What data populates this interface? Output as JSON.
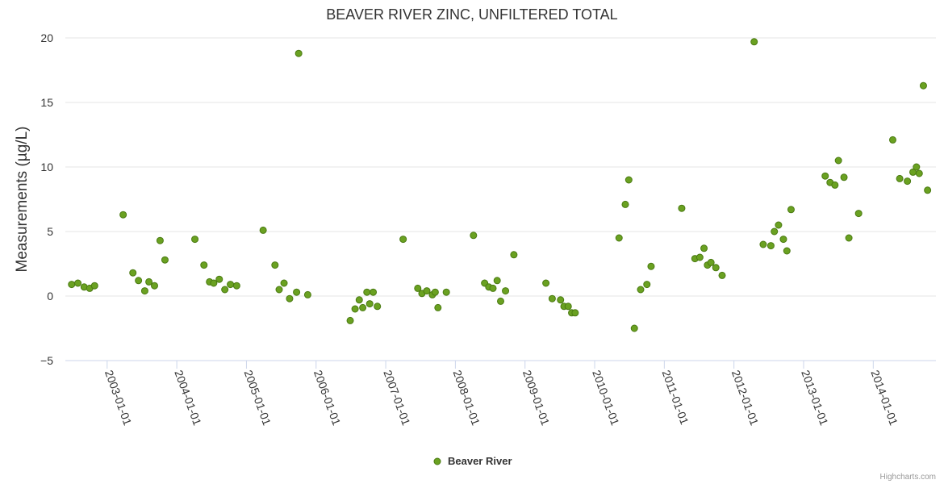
{
  "chart_data": {
    "type": "scatter",
    "title": "BEAVER RIVER ZINC, UNFILTERED TOTAL",
    "xlabel": "",
    "ylabel": "Measurements (µg/L)",
    "ylim": [
      -5,
      20
    ],
    "yticks": [
      -5,
      0,
      5,
      10,
      15,
      20
    ],
    "xrange": [
      2002.4,
      2014.9
    ],
    "xticks": [
      {
        "value": 2003,
        "label": "2003-01-01"
      },
      {
        "value": 2004,
        "label": "2004-01-01"
      },
      {
        "value": 2005,
        "label": "2005-01-01"
      },
      {
        "value": 2006,
        "label": "2006-01-01"
      },
      {
        "value": 2007,
        "label": "2007-01-01"
      },
      {
        "value": 2008,
        "label": "2008-01-01"
      },
      {
        "value": 2009,
        "label": "2009-01-01"
      },
      {
        "value": 2010,
        "label": "2010-01-01"
      },
      {
        "value": 2011,
        "label": "2011-01-01"
      },
      {
        "value": 2012,
        "label": "2012-01-01"
      },
      {
        "value": 2013,
        "label": "2013-01-01"
      },
      {
        "value": 2014,
        "label": "2014-01-01"
      }
    ],
    "grid": true,
    "legend_position": "bottom-center",
    "series": [
      {
        "name": "Beaver River",
        "color": "#6aa121",
        "points": [
          [
            2002.49,
            0.9
          ],
          [
            2002.58,
            1.0
          ],
          [
            2002.67,
            0.7
          ],
          [
            2002.75,
            0.6
          ],
          [
            2002.82,
            0.8
          ],
          [
            2003.23,
            6.3
          ],
          [
            2003.37,
            1.8
          ],
          [
            2003.45,
            1.2
          ],
          [
            2003.54,
            0.4
          ],
          [
            2003.6,
            1.1
          ],
          [
            2003.68,
            0.8
          ],
          [
            2003.76,
            4.3
          ],
          [
            2003.83,
            2.8
          ],
          [
            2004.26,
            4.4
          ],
          [
            2004.39,
            2.4
          ],
          [
            2004.47,
            1.1
          ],
          [
            2004.53,
            1.0
          ],
          [
            2004.61,
            1.3
          ],
          [
            2004.69,
            0.5
          ],
          [
            2004.77,
            0.9
          ],
          [
            2004.86,
            0.8
          ],
          [
            2005.24,
            5.1
          ],
          [
            2005.41,
            2.4
          ],
          [
            2005.47,
            0.5
          ],
          [
            2005.54,
            1.0
          ],
          [
            2005.62,
            -0.2
          ],
          [
            2005.72,
            0.3
          ],
          [
            2005.75,
            18.8
          ],
          [
            2005.88,
            0.1
          ],
          [
            2006.49,
            -1.9
          ],
          [
            2006.56,
            -1.0
          ],
          [
            2006.62,
            -0.3
          ],
          [
            2006.67,
            -0.9
          ],
          [
            2006.73,
            0.3
          ],
          [
            2006.77,
            -0.6
          ],
          [
            2006.82,
            0.3
          ],
          [
            2006.88,
            -0.8
          ],
          [
            2007.25,
            4.4
          ],
          [
            2007.46,
            0.6
          ],
          [
            2007.52,
            0.2
          ],
          [
            2007.59,
            0.4
          ],
          [
            2007.67,
            0.1
          ],
          [
            2007.71,
            0.3
          ],
          [
            2007.75,
            -0.9
          ],
          [
            2007.87,
            0.3
          ],
          [
            2008.26,
            4.7
          ],
          [
            2008.42,
            1.0
          ],
          [
            2008.48,
            0.7
          ],
          [
            2008.54,
            0.6
          ],
          [
            2008.6,
            1.2
          ],
          [
            2008.65,
            -0.4
          ],
          [
            2008.72,
            0.4
          ],
          [
            2008.84,
            3.2
          ],
          [
            2009.3,
            1.0
          ],
          [
            2009.39,
            -0.2
          ],
          [
            2009.51,
            -0.3
          ],
          [
            2009.56,
            -0.8
          ],
          [
            2009.62,
            -0.8
          ],
          [
            2009.67,
            -1.3
          ],
          [
            2009.72,
            -1.3
          ],
          [
            2010.35,
            4.5
          ],
          [
            2010.44,
            7.1
          ],
          [
            2010.49,
            9.0
          ],
          [
            2010.57,
            -2.5
          ],
          [
            2010.66,
            0.5
          ],
          [
            2010.75,
            0.9
          ],
          [
            2010.81,
            2.3
          ],
          [
            2011.25,
            6.8
          ],
          [
            2011.44,
            2.9
          ],
          [
            2011.51,
            3.0
          ],
          [
            2011.57,
            3.7
          ],
          [
            2011.62,
            2.4
          ],
          [
            2011.67,
            2.6
          ],
          [
            2011.74,
            2.2
          ],
          [
            2011.83,
            1.6
          ],
          [
            2012.29,
            19.7
          ],
          [
            2012.42,
            4.0
          ],
          [
            2012.53,
            3.9
          ],
          [
            2012.58,
            5.0
          ],
          [
            2012.64,
            5.5
          ],
          [
            2012.71,
            4.4
          ],
          [
            2012.76,
            3.5
          ],
          [
            2012.82,
            6.7
          ],
          [
            2013.31,
            9.3
          ],
          [
            2013.38,
            8.8
          ],
          [
            2013.45,
            8.6
          ],
          [
            2013.5,
            10.5
          ],
          [
            2013.58,
            9.2
          ],
          [
            2013.65,
            4.5
          ],
          [
            2013.79,
            6.4
          ],
          [
            2014.28,
            12.1
          ],
          [
            2014.38,
            9.1
          ],
          [
            2014.49,
            8.9
          ],
          [
            2014.57,
            9.6
          ],
          [
            2014.62,
            10.0
          ],
          [
            2014.66,
            9.5
          ],
          [
            2014.72,
            16.3
          ],
          [
            2014.78,
            8.2
          ]
        ]
      }
    ]
  },
  "credits": "Highcharts.com"
}
